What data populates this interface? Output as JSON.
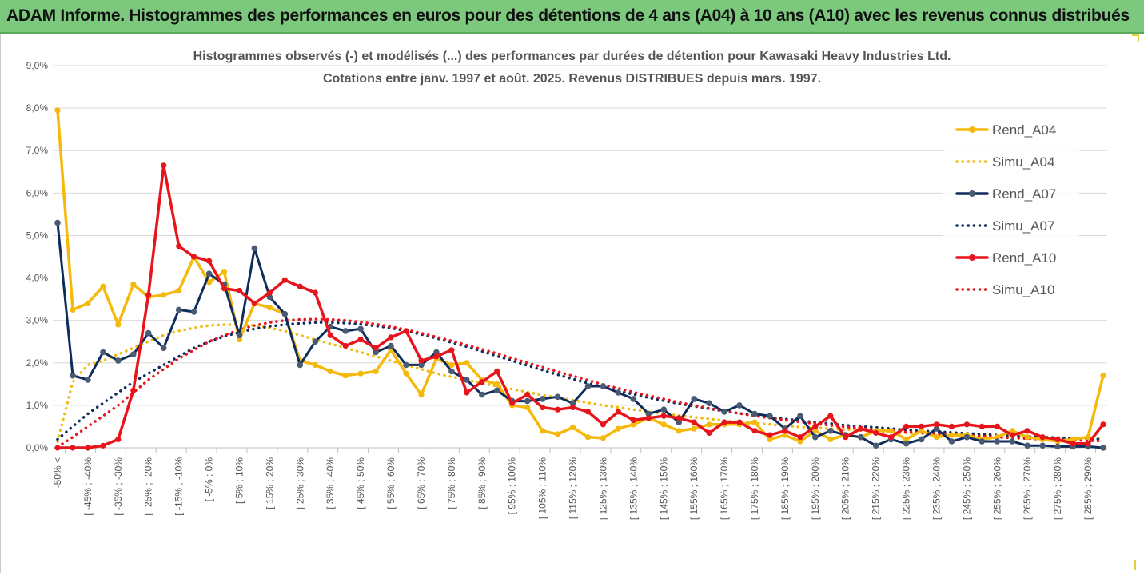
{
  "header": {
    "title": "ADAM Informe. Histogrammes des performances en euros pour des détentions de 4 ans (A04) à 10 ans (A10) avec les revenus connus distribués"
  },
  "colors": {
    "header_bg": "#7cc97d",
    "A04": "#f4b90a",
    "A07": "#0f2d5c",
    "A10": "#e8141c",
    "grid": "#d9d9d9",
    "text": "#555555"
  },
  "chart_data": {
    "type": "line",
    "title": "Histogrammes observés (-) et modélisés (...) des performances par durées de détention pour Kawasaki Heavy Industries Ltd.",
    "subtitle": "Cotations entre janv. 1997 et août. 2025. Revenus DISTRIBUES depuis mars. 1997.",
    "xlabel": "",
    "ylabel": "",
    "ylim": [
      0,
      9
    ],
    "yticks": [
      "0,0%",
      "1,0%",
      "2,0%",
      "3,0%",
      "4,0%",
      "5,0%",
      "6,0%",
      "7,0%",
      "8,0%",
      "9,0%"
    ],
    "x_tick_labels": [
      "-50% <",
      "[ -45% ; -40%",
      "[ -35% ; -30%",
      "[ -25% ; -20%",
      "[ -15% ; -10%",
      "[ -5% ; 0%",
      "[ 5% ; 10%",
      "[ 15% ; 20%",
      "[ 25% ; 30%",
      "[ 35% ; 40%",
      "[ 45% ; 50%",
      "[ 55% ; 60%",
      "[ 65% ; 70%",
      "[ 75% ; 80%",
      "[ 85% ; 90%",
      "[ 95% ; 100%",
      "[ 105% ; 110%",
      "[ 115% ; 120%",
      "[ 125% ; 130%",
      "[ 135% ; 140%",
      "[ 145% ; 150%",
      "[ 155% ; 160%",
      "[ 165% ; 170%",
      "[ 175% ; 180%",
      "[ 185% ; 190%",
      "[ 195% ; 200%",
      "[ 205% ; 210%",
      "[ 215% ; 220%",
      "[ 225% ; 230%",
      "[ 235% ; 240%",
      "[ 245% ; 250%",
      "[ 255% ; 260%",
      "[ 265% ; 270%",
      "[ 275% ; 280%",
      "[ 285% ; 290%"
    ],
    "categories_count": 70,
    "grid": true,
    "legend_position": "right",
    "series": [
      {
        "name": "Rend_A04",
        "style": "solid",
        "markers": true,
        "color": "#f4b90a",
        "values": [
          7.95,
          3.25,
          3.4,
          3.8,
          2.9,
          3.85,
          3.55,
          3.6,
          3.7,
          4.5,
          3.9,
          4.15,
          2.55,
          3.4,
          3.3,
          3.15,
          2.05,
          1.95,
          1.8,
          1.7,
          1.75,
          1.8,
          2.3,
          1.75,
          1.25,
          2.1,
          1.95,
          2.0,
          1.6,
          1.5,
          1.0,
          0.95,
          0.4,
          0.32,
          0.48,
          0.25,
          0.23,
          0.45,
          0.55,
          0.7,
          0.55,
          0.4,
          0.45,
          0.55,
          0.55,
          0.55,
          0.6,
          0.2,
          0.3,
          0.15,
          0.4,
          0.2,
          0.3,
          0.25,
          0.4,
          0.4,
          0.2,
          0.4,
          0.25,
          0.3,
          0.3,
          0.2,
          0.25,
          0.4,
          0.25,
          0.2,
          0.15,
          0.2,
          0.25,
          1.7
        ]
      },
      {
        "name": "Simu_A04",
        "style": "dotted",
        "markers": false,
        "color": "#f4b90a",
        "values": [
          0.15,
          1.55,
          1.95,
          2.05,
          2.2,
          2.35,
          2.5,
          2.65,
          2.75,
          2.82,
          2.88,
          2.9,
          2.9,
          2.88,
          2.82,
          2.75,
          2.65,
          2.55,
          2.45,
          2.35,
          2.25,
          2.15,
          2.05,
          1.95,
          1.85,
          1.75,
          1.67,
          1.6,
          1.52,
          1.45,
          1.38,
          1.31,
          1.24,
          1.18,
          1.12,
          1.06,
          1.0,
          0.95,
          0.9,
          0.85,
          0.8,
          0.76,
          0.72,
          0.68,
          0.64,
          0.61,
          0.58,
          0.55,
          0.52,
          0.49,
          0.47,
          0.45,
          0.43,
          0.41,
          0.39,
          0.37,
          0.35,
          0.34,
          0.33,
          0.31,
          0.3,
          0.29,
          0.28,
          0.27,
          0.26,
          0.25,
          0.24,
          0.23,
          0.22,
          0.21
        ]
      },
      {
        "name": "Rend_A07",
        "style": "solid",
        "markers": true,
        "color": "#0f2d5c",
        "values": [
          5.3,
          1.7,
          1.6,
          2.25,
          2.05,
          2.2,
          2.7,
          2.35,
          3.25,
          3.2,
          4.1,
          3.85,
          2.65,
          4.7,
          3.55,
          3.15,
          1.95,
          2.5,
          2.85,
          2.75,
          2.8,
          2.25,
          2.4,
          1.95,
          1.95,
          2.25,
          1.8,
          1.6,
          1.25,
          1.35,
          1.1,
          1.1,
          1.15,
          1.2,
          1.05,
          1.45,
          1.45,
          1.3,
          1.15,
          0.8,
          0.9,
          0.6,
          1.15,
          1.05,
          0.85,
          1.0,
          0.8,
          0.75,
          0.45,
          0.75,
          0.25,
          0.4,
          0.3,
          0.25,
          0.05,
          0.2,
          0.1,
          0.2,
          0.45,
          0.15,
          0.25,
          0.15,
          0.15,
          0.15,
          0.05,
          0.05,
          0.03,
          0.03,
          0.03,
          0.0
        ]
      },
      {
        "name": "Simu_A07",
        "style": "dotted",
        "markers": false,
        "color": "#0f2d5c",
        "values": [
          0.2,
          0.5,
          0.8,
          1.05,
          1.3,
          1.55,
          1.75,
          1.95,
          2.15,
          2.35,
          2.5,
          2.62,
          2.72,
          2.8,
          2.86,
          2.9,
          2.93,
          2.95,
          2.95,
          2.94,
          2.91,
          2.87,
          2.82,
          2.75,
          2.67,
          2.58,
          2.48,
          2.38,
          2.27,
          2.16,
          2.05,
          1.94,
          1.83,
          1.72,
          1.62,
          1.52,
          1.43,
          1.34,
          1.26,
          1.18,
          1.11,
          1.04,
          0.98,
          0.92,
          0.86,
          0.81,
          0.76,
          0.72,
          0.68,
          0.64,
          0.6,
          0.57,
          0.53,
          0.5,
          0.48,
          0.45,
          0.42,
          0.4,
          0.38,
          0.36,
          0.34,
          0.32,
          0.3,
          0.28,
          0.27,
          0.25,
          0.24,
          0.22,
          0.21,
          0.2
        ]
      },
      {
        "name": "Rend_A10",
        "style": "solid",
        "markers": true,
        "color": "#e8141c",
        "values": [
          0.0,
          0.0,
          0.0,
          0.05,
          0.2,
          1.35,
          3.6,
          6.65,
          4.75,
          4.5,
          4.4,
          3.75,
          3.7,
          3.4,
          3.65,
          3.95,
          3.8,
          3.65,
          2.65,
          2.4,
          2.55,
          2.35,
          2.6,
          2.75,
          2.05,
          2.15,
          2.3,
          1.3,
          1.55,
          1.8,
          1.05,
          1.25,
          0.95,
          0.9,
          0.95,
          0.85,
          0.55,
          0.85,
          0.65,
          0.7,
          0.75,
          0.7,
          0.6,
          0.35,
          0.6,
          0.6,
          0.4,
          0.3,
          0.4,
          0.25,
          0.5,
          0.75,
          0.25,
          0.45,
          0.35,
          0.25,
          0.5,
          0.5,
          0.55,
          0.5,
          0.55,
          0.5,
          0.5,
          0.3,
          0.4,
          0.25,
          0.2,
          0.1,
          0.1,
          0.55
        ]
      },
      {
        "name": "Simu_A10",
        "style": "dotted",
        "markers": false,
        "color": "#e8141c",
        "values": [
          0.02,
          0.25,
          0.5,
          0.75,
          1.0,
          1.3,
          1.6,
          1.85,
          2.1,
          2.3,
          2.5,
          2.65,
          2.78,
          2.88,
          2.95,
          3.0,
          3.02,
          3.03,
          3.02,
          3.0,
          2.96,
          2.91,
          2.85,
          2.78,
          2.7,
          2.61,
          2.52,
          2.42,
          2.32,
          2.22,
          2.11,
          2.0,
          1.9,
          1.79,
          1.69,
          1.59,
          1.49,
          1.4,
          1.31,
          1.23,
          1.15,
          1.07,
          1.0,
          0.93,
          0.87,
          0.81,
          0.75,
          0.7,
          0.65,
          0.61,
          0.57,
          0.53,
          0.49,
          0.46,
          0.43,
          0.4,
          0.37,
          0.35,
          0.33,
          0.31,
          0.29,
          0.27,
          0.25,
          0.23,
          0.22,
          0.2,
          0.19,
          0.18,
          0.17,
          0.16
        ]
      }
    ]
  }
}
